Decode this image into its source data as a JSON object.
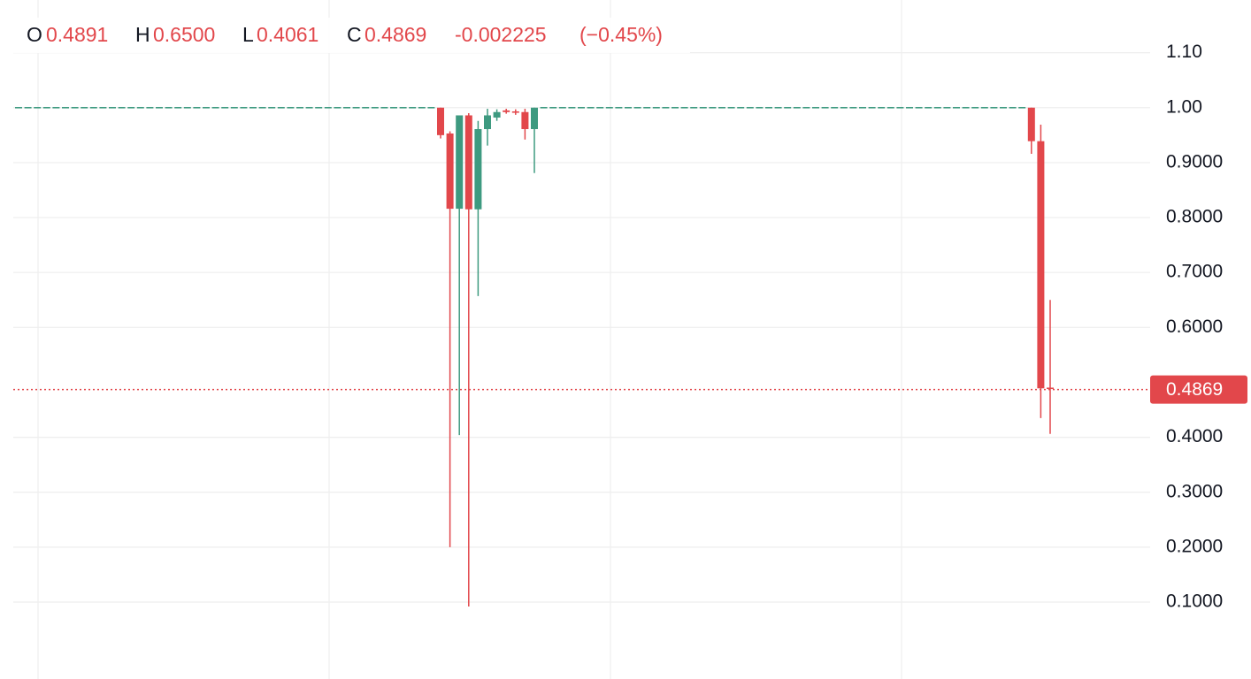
{
  "chart_data": {
    "type": "candlestick",
    "up_color": "#3e9a80",
    "down_color": "#e2474b",
    "grid": true,
    "ylim": [
      -0.04,
      1.196
    ],
    "yticks": [
      {
        "value": 1.1,
        "label": "1.10"
      },
      {
        "value": 1.0,
        "label": "1.00"
      },
      {
        "value": 0.9,
        "label": "0.9000"
      },
      {
        "value": 0.8,
        "label": "0.8000"
      },
      {
        "value": 0.7,
        "label": "0.7000"
      },
      {
        "value": 0.6,
        "label": "0.6000"
      },
      {
        "value": 0.4,
        "label": "0.4000"
      },
      {
        "value": 0.3,
        "label": "0.3000"
      },
      {
        "value": 0.2,
        "label": "0.2000"
      },
      {
        "value": 0.1,
        "label": "0.1000"
      }
    ],
    "open": [
      1,
      1,
      1,
      1,
      1,
      1,
      1,
      1,
      1,
      1,
      1,
      1,
      1,
      1,
      1,
      1,
      1,
      1,
      1,
      1,
      1,
      1,
      1,
      1,
      1,
      1,
      1,
      1,
      1,
      1,
      1,
      1,
      1,
      1,
      1,
      1,
      1,
      1,
      1,
      1,
      1,
      1,
      1,
      1,
      1,
      1.0,
      0.953,
      0.816,
      0.986,
      0.815,
      0.961,
      0.982,
      0.995,
      0.992,
      0.992,
      0.961,
      1,
      1,
      1,
      1,
      1,
      1,
      1,
      1,
      1,
      1,
      1,
      1,
      1,
      1,
      1,
      1,
      1,
      1,
      1,
      1,
      1,
      1,
      1,
      1,
      1,
      1,
      1,
      1,
      1,
      1,
      1,
      1,
      1,
      1,
      1,
      1,
      1,
      1,
      1,
      1,
      1,
      1,
      1,
      1,
      1,
      1,
      1,
      1,
      1,
      1,
      1,
      1,
      1.0,
      0.939,
      0.4891
    ],
    "high": [
      1,
      1,
      1,
      1,
      1,
      1,
      1,
      1,
      1,
      1,
      1,
      1,
      1,
      1,
      1,
      1,
      1,
      1,
      1,
      1,
      1,
      1,
      1,
      1,
      1,
      1,
      1,
      1,
      1,
      1,
      1,
      1,
      1,
      1,
      1,
      1,
      1,
      1,
      1,
      1,
      1,
      1,
      1,
      1,
      1,
      1.0,
      0.957,
      0.986,
      0.99,
      0.976,
      0.998,
      0.997,
      0.998,
      0.997,
      0.998,
      1.0,
      1,
      1,
      1,
      1,
      1,
      1,
      1,
      1,
      1,
      1,
      1,
      1,
      1,
      1,
      1,
      1,
      1,
      1,
      1,
      1,
      1,
      1,
      1,
      1,
      1,
      1,
      1,
      1,
      1,
      1,
      1,
      1,
      1,
      1,
      1,
      1,
      1,
      1,
      1,
      1,
      1,
      1,
      1,
      1,
      1,
      1,
      1,
      1,
      1,
      1,
      1,
      1,
      1.0,
      0.969,
      0.65
    ],
    "low": [
      1,
      1,
      1,
      1,
      1,
      1,
      1,
      1,
      1,
      1,
      1,
      1,
      1,
      1,
      1,
      1,
      1,
      1,
      1,
      1,
      1,
      1,
      1,
      1,
      1,
      1,
      1,
      1,
      1,
      1,
      1,
      1,
      1,
      1,
      1,
      1,
      1,
      1,
      1,
      1,
      1,
      1,
      1,
      1,
      1,
      0.944,
      0.2,
      0.404,
      0.092,
      0.657,
      0.931,
      0.976,
      0.989,
      0.987,
      0.942,
      0.881,
      1,
      1,
      1,
      1,
      1,
      1,
      1,
      1,
      1,
      1,
      1,
      1,
      1,
      1,
      1,
      1,
      1,
      1,
      1,
      1,
      1,
      1,
      1,
      1,
      1,
      1,
      1,
      1,
      1,
      1,
      1,
      1,
      1,
      1,
      1,
      1,
      1,
      1,
      1,
      1,
      1,
      1,
      1,
      1,
      1,
      1,
      1,
      1,
      1,
      1,
      1,
      1,
      0.916,
      0.435,
      0.4061
    ],
    "close": [
      1,
      1,
      1,
      1,
      1,
      1,
      1,
      1,
      1,
      1,
      1,
      1,
      1,
      1,
      1,
      1,
      1,
      1,
      1,
      1,
      1,
      1,
      1,
      1,
      1,
      1,
      1,
      1,
      1,
      1,
      1,
      1,
      1,
      1,
      1,
      1,
      1,
      1,
      1,
      1,
      1,
      1,
      1,
      1,
      1,
      0.95,
      0.816,
      0.986,
      0.815,
      0.961,
      0.986,
      0.992,
      0.992,
      0.99,
      0.961,
      1.0,
      1,
      1,
      1,
      1,
      1,
      1,
      1,
      1,
      1,
      1,
      1,
      1,
      1,
      1,
      1,
      1,
      1,
      1,
      1,
      1,
      1,
      1,
      1,
      1,
      1,
      1,
      1,
      1,
      1,
      1,
      1,
      1,
      1,
      1,
      1,
      1,
      1,
      1,
      1,
      1,
      1,
      1,
      1,
      1,
      1,
      1,
      1,
      1,
      1,
      1,
      1,
      1,
      0.939,
      0.4891,
      0.4869
    ],
    "last_price": 0.4869,
    "legend": {
      "keys": [
        "O",
        "H",
        "L",
        "C"
      ],
      "values": [
        0.4891,
        0.65,
        0.4061,
        0.4869
      ],
      "value_labels": [
        "0.4891",
        "0.6500",
        "0.4061",
        "0.4869"
      ],
      "change": {
        "value": -0.002225,
        "label": "-0.002225"
      },
      "change_percent": {
        "value": -0.45,
        "label": "(−0.45%)"
      }
    }
  }
}
